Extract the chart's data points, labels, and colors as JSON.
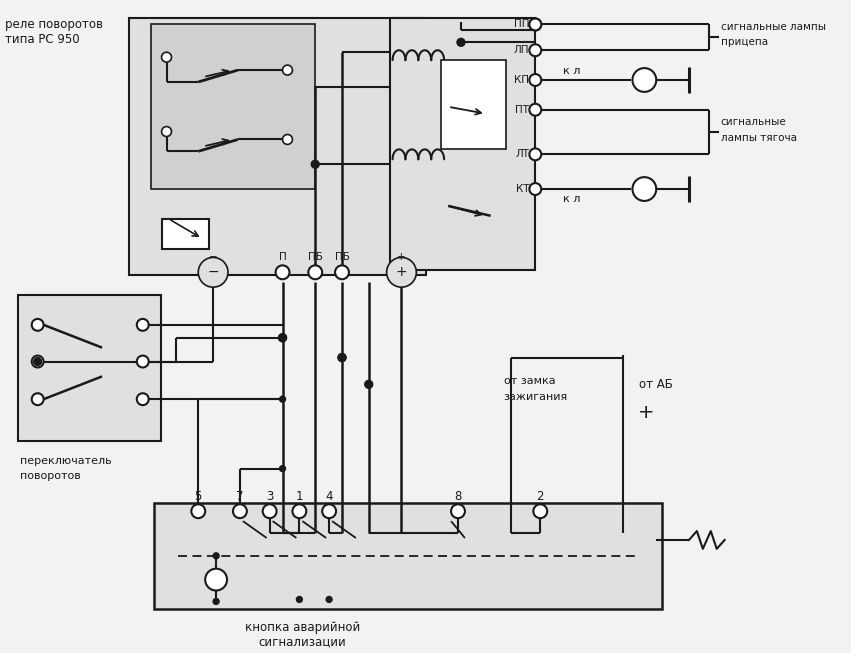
{
  "bg_color": "#f2f2f2",
  "line_color": "#1a1a1a",
  "fig_width": 8.51,
  "fig_height": 6.53,
  "dpi": 100,
  "relay_title": [
    "реле поворотов",
    "типа РС 950"
  ],
  "signal_trailer": [
    "сигнальные лампы",
    "прицепа"
  ],
  "signal_tractor": [
    "сигнальные",
    "лампы тягоча"
  ],
  "ignition": [
    "от замка",
    "зажигания"
  ],
  "battery": "от АБ",
  "switch_label": [
    "переключатель",
    "поворотов"
  ],
  "button_label": [
    "кнопка аварийной",
    "сигнализации"
  ],
  "kl": "к л",
  "plus": "+",
  "term_labels": [
    "ПП",
    "ЛП",
    "КП",
    "ПТ",
    "ЛТ",
    "КТ"
  ],
  "conn_labels": [
    "−",
    "П",
    "ПБ",
    "ПБ",
    "+"
  ],
  "pin_labels": [
    "5",
    "7",
    "3",
    "1",
    "4",
    "8",
    "2"
  ]
}
